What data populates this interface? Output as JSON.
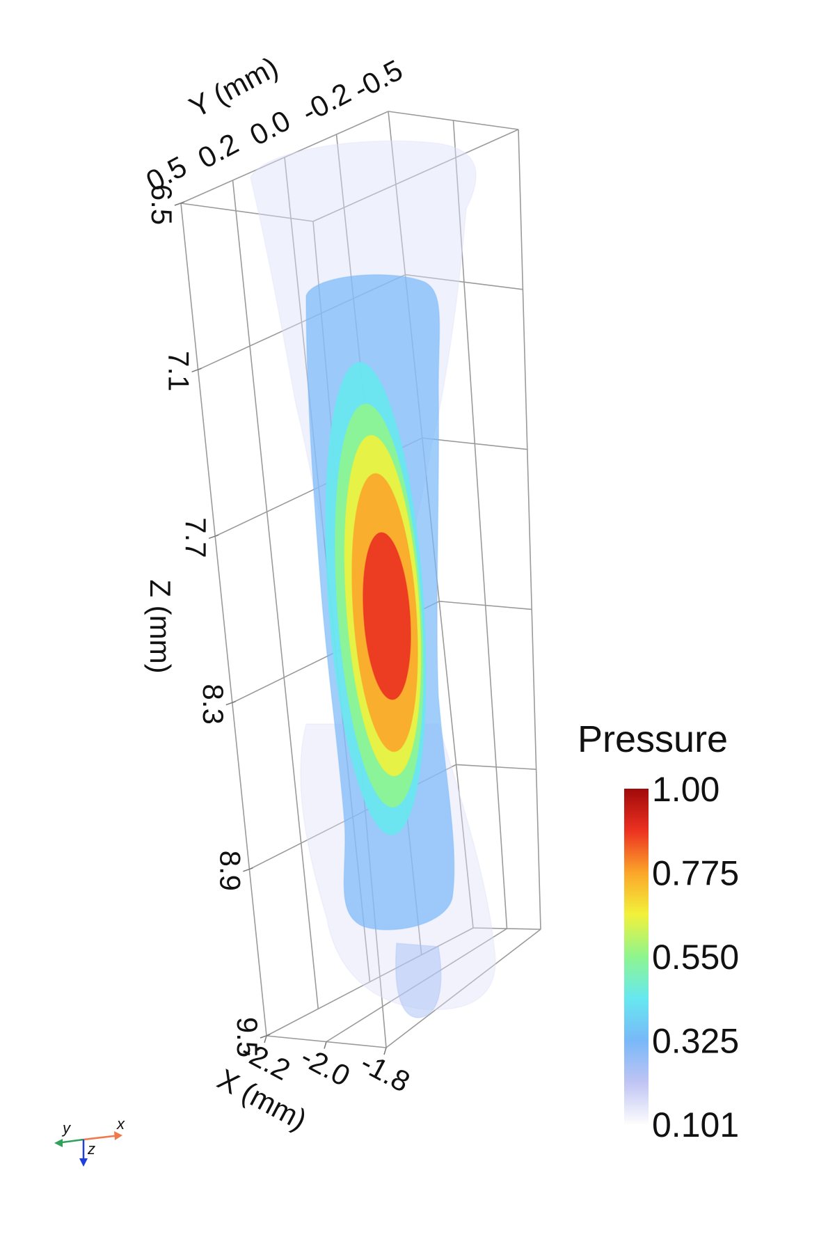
{
  "chart_data": {
    "type": "other",
    "axes": {
      "x": {
        "label": "X (mm)",
        "ticks": [
          "-2.2",
          "-2.0",
          "-1.8"
        ]
      },
      "y": {
        "label": "Y (mm)",
        "ticks": [
          "0.5",
          "0.2",
          "0.0",
          "-0.2",
          "-0.5"
        ]
      },
      "z": {
        "label": "Z (mm)",
        "ticks": [
          "6.5",
          "7.1",
          "7.7",
          "8.3",
          "8.9",
          "9.5"
        ]
      }
    },
    "colorbar": {
      "title": "Pressure",
      "ticks": [
        "1.00",
        "0.775",
        "0.550",
        "0.325",
        "0.101"
      ],
      "min": 0.101,
      "max": 1.0,
      "colormap": [
        "#fdfdfd",
        "#bfc4f4",
        "#78b8f8",
        "#67e8f0",
        "#8ef58e",
        "#f2f23a",
        "#fba62a",
        "#ec3121",
        "#a00a0a"
      ]
    },
    "isosurface_levels": [
      0.101,
      0.25,
      0.325,
      0.44,
      0.55,
      0.66,
      0.775,
      0.89
    ],
    "triad": {
      "x": "x",
      "y": "y",
      "z": "z"
    }
  }
}
